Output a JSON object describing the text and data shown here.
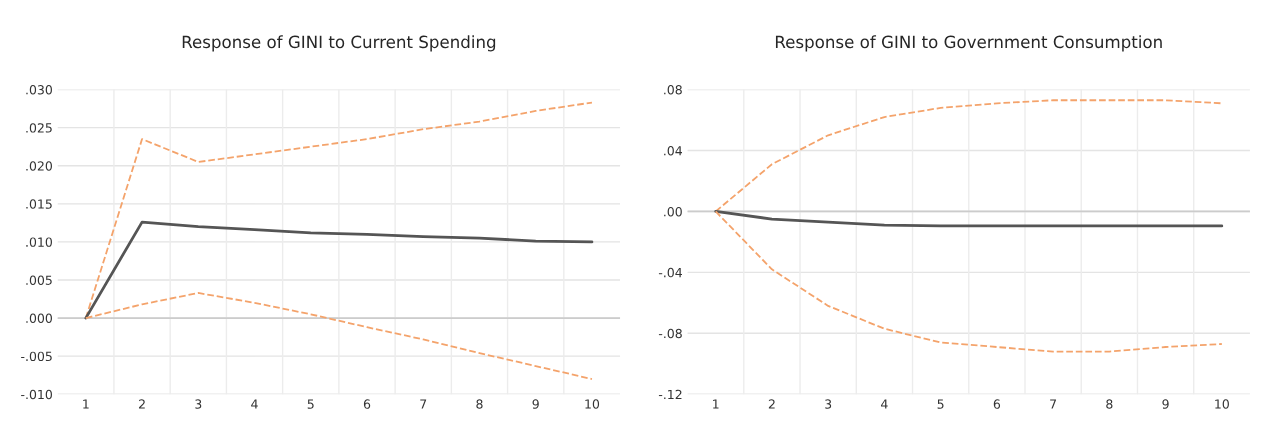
{
  "chart_data": [
    {
      "type": "line",
      "title": "Response of GINI to Current Spending",
      "categories": [
        "1",
        "2",
        "3",
        "4",
        "5",
        "6",
        "7",
        "8",
        "9",
        "10"
      ],
      "ylim": [
        -0.01,
        0.03
      ],
      "yticks": [
        {
          "value": -0.01,
          "label": "-.010"
        },
        {
          "value": -0.005,
          "label": "-.005"
        },
        {
          "value": 0,
          "label": ".000"
        },
        {
          "value": 0.005,
          "label": ".005"
        },
        {
          "value": 0.01,
          "label": ".010"
        },
        {
          "value": 0.015,
          "label": ".015"
        },
        {
          "value": 0.02,
          "label": ".020"
        },
        {
          "value": 0.025,
          "label": ".025"
        },
        {
          "value": 0.03,
          "label": ".030"
        }
      ],
      "grid": true,
      "marker": "none",
      "series": [
        {
          "color": "#f4a36b",
          "line_style": "dashed",
          "values": [
            0,
            0.0235,
            0.0205,
            0.0215,
            0.0225,
            0.0235,
            0.0248,
            0.0258,
            0.0272,
            0.0283
          ]
        },
        {
          "color": "#555555",
          "line_style": "solid",
          "values": [
            0,
            0.0126,
            0.012,
            0.0116,
            0.0112,
            0.011,
            0.0107,
            0.0105,
            0.0101,
            0.01
          ]
        },
        {
          "color": "#f4a36b",
          "line_style": "dashed",
          "values": [
            0,
            0.0018,
            0.0033,
            0.002,
            0.0005,
            -0.0012,
            -0.0028,
            -0.0046,
            -0.0063,
            -0.008
          ]
        }
      ]
    },
    {
      "type": "line",
      "title": "Response of GINI to Government Consumption",
      "categories": [
        "1",
        "2",
        "3",
        "4",
        "5",
        "6",
        "7",
        "8",
        "9",
        "10"
      ],
      "ylim": [
        -0.12,
        0.08
      ],
      "yticks": [
        {
          "value": -0.12,
          "label": "-.12"
        },
        {
          "value": -0.08,
          "label": "-.08"
        },
        {
          "value": -0.04,
          "label": "-.04"
        },
        {
          "value": 0,
          "label": ".00"
        },
        {
          "value": 0.04,
          "label": ".04"
        },
        {
          "value": 0.08,
          "label": ".08"
        }
      ],
      "grid": true,
      "marker": "none",
      "series": [
        {
          "color": "#f4a36b",
          "line_style": "dashed",
          "values": [
            0,
            0.031,
            0.05,
            0.062,
            0.068,
            0.071,
            0.073,
            0.073,
            0.073,
            0.071
          ]
        },
        {
          "color": "#555555",
          "line_style": "solid",
          "values": [
            0,
            -0.005,
            -0.007,
            -0.009,
            -0.0095,
            -0.0095,
            -0.0095,
            -0.0095,
            -0.0095,
            -0.0095
          ]
        },
        {
          "color": "#f4a36b",
          "line_style": "dashed",
          "values": [
            0,
            -0.038,
            -0.062,
            -0.077,
            -0.086,
            -0.089,
            -0.092,
            -0.092,
            -0.089,
            -0.087
          ]
        }
      ]
    }
  ]
}
